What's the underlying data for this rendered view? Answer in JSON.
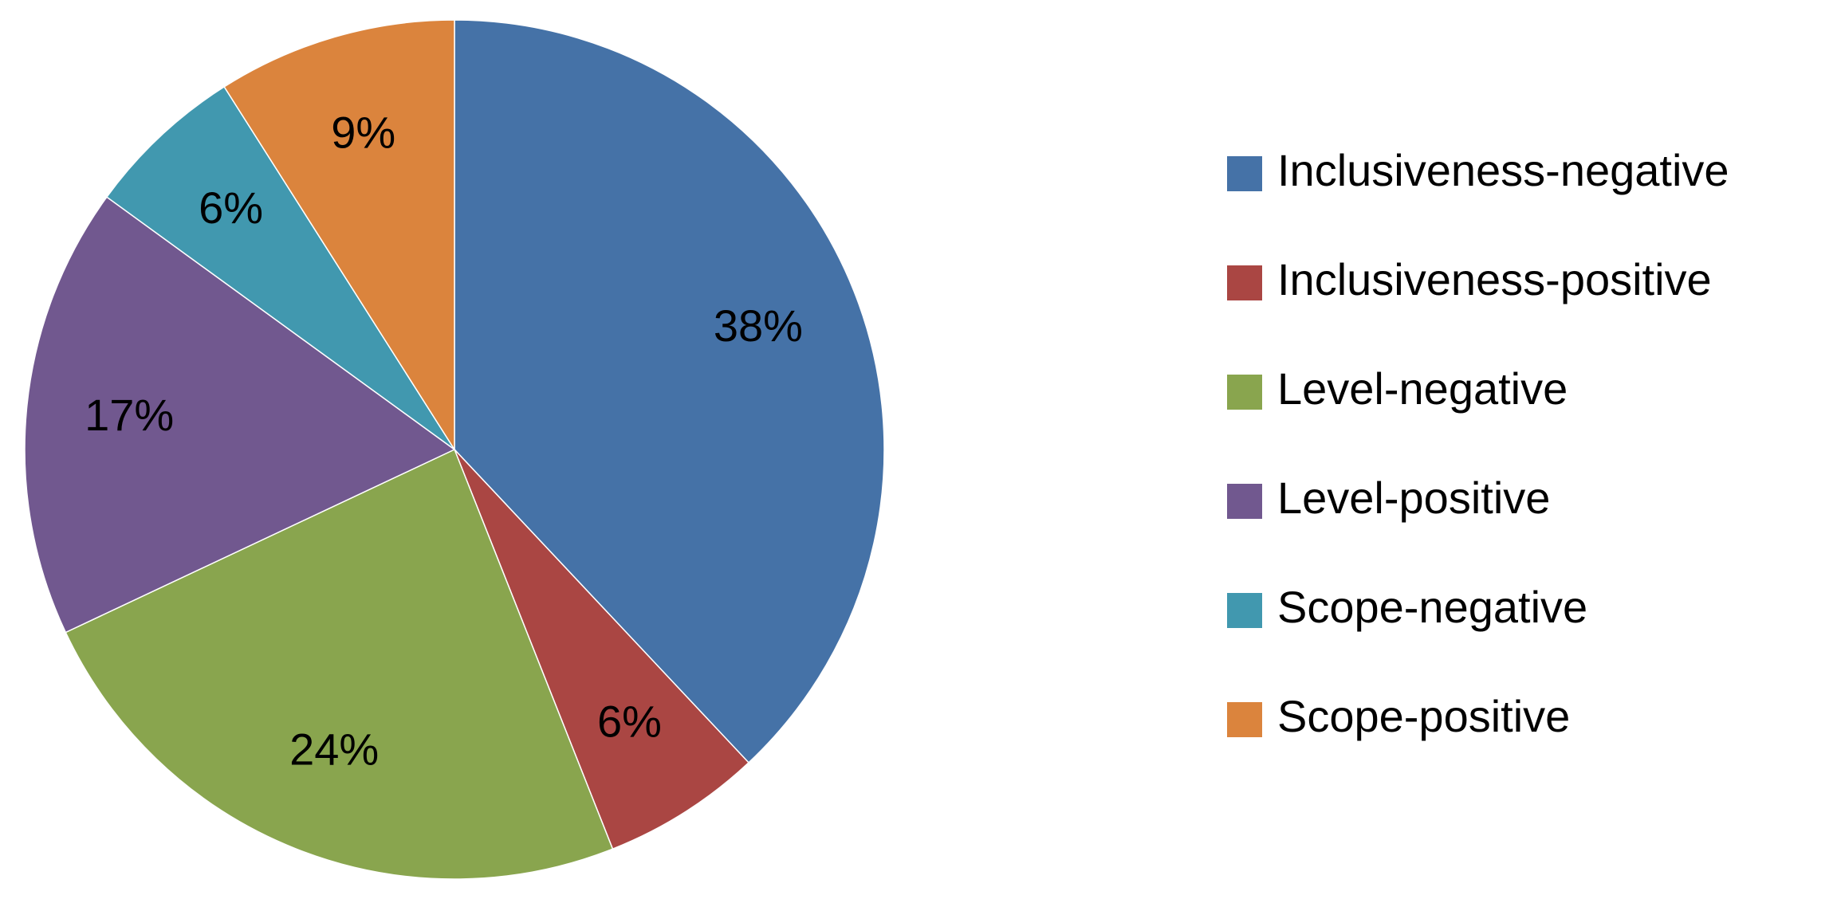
{
  "chart_data": {
    "type": "pie",
    "categories": [
      "Inclusiveness-negative",
      "Inclusiveness-positive",
      "Level-negative",
      "Level-positive",
      "Scope-negative",
      "Scope-positive"
    ],
    "values": [
      38,
      6,
      24,
      17,
      6,
      9
    ],
    "value_labels": [
      "38%",
      "6%",
      "24%",
      "17%",
      "6%",
      "9%"
    ],
    "colors": [
      "#4572a7",
      "#aa4643",
      "#89a54e",
      "#71588f",
      "#4198af",
      "#db843d"
    ],
    "legend": "right"
  }
}
